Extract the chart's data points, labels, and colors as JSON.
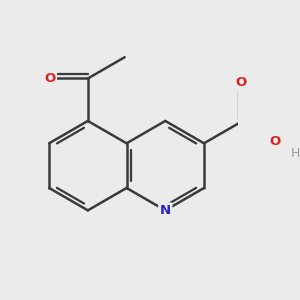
{
  "background_color": "#ebebeb",
  "bond_color": "#3a3a3a",
  "bond_width": 1.8,
  "atom_colors": {
    "N": "#2222cc",
    "O": "#dd2222",
    "H": "#999999",
    "C": "#3a3a3a"
  },
  "figsize": [
    3.0,
    3.0
  ],
  "dpi": 100
}
